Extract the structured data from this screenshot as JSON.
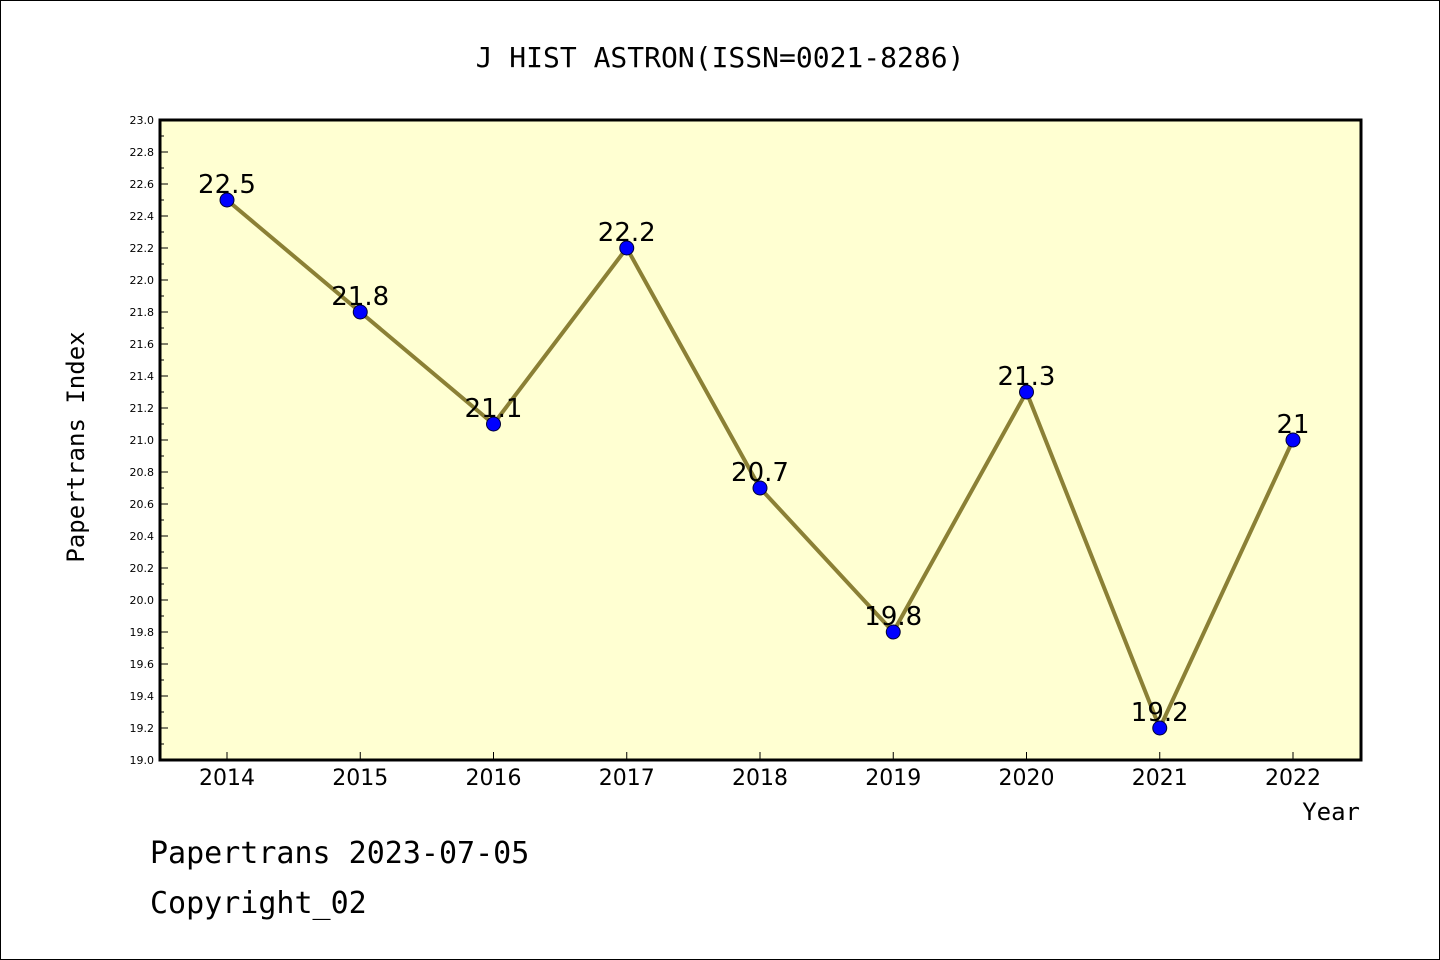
{
  "chart_data": {
    "type": "line",
    "title": "J HIST ASTRON(ISSN=0021-8286)",
    "xlabel": "Year",
    "ylabel": "Papertrans Index",
    "categories": [
      "2014",
      "2015",
      "2016",
      "2017",
      "2018",
      "2019",
      "2020",
      "2021",
      "2022"
    ],
    "series": [
      {
        "values": [
          22.5,
          21.8,
          21.1,
          22.2,
          20.7,
          19.8,
          21.3,
          19.2,
          21.0
        ],
        "labels": [
          "22.5",
          "21.8",
          "21.1",
          "22.2",
          "20.7",
          "19.8",
          "21.3",
          "19.2",
          "21"
        ],
        "line_color": "#8b8035",
        "marker_color": "#0000ff"
      }
    ],
    "ylim": [
      19.0,
      23.0
    ],
    "yticks": [
      "19.0",
      "19.2",
      "19.4",
      "19.6",
      "19.8",
      "20.0",
      "20.2",
      "20.4",
      "20.6",
      "20.8",
      "21.0",
      "21.2",
      "21.4",
      "21.6",
      "21.8",
      "22.0",
      "22.2",
      "22.4",
      "22.6",
      "22.8",
      "23.0"
    ],
    "plot_background": "#ffffd2",
    "grid": false
  },
  "footer": {
    "line1": "Papertrans 2023-07-05",
    "line2": "Copyright_02"
  }
}
